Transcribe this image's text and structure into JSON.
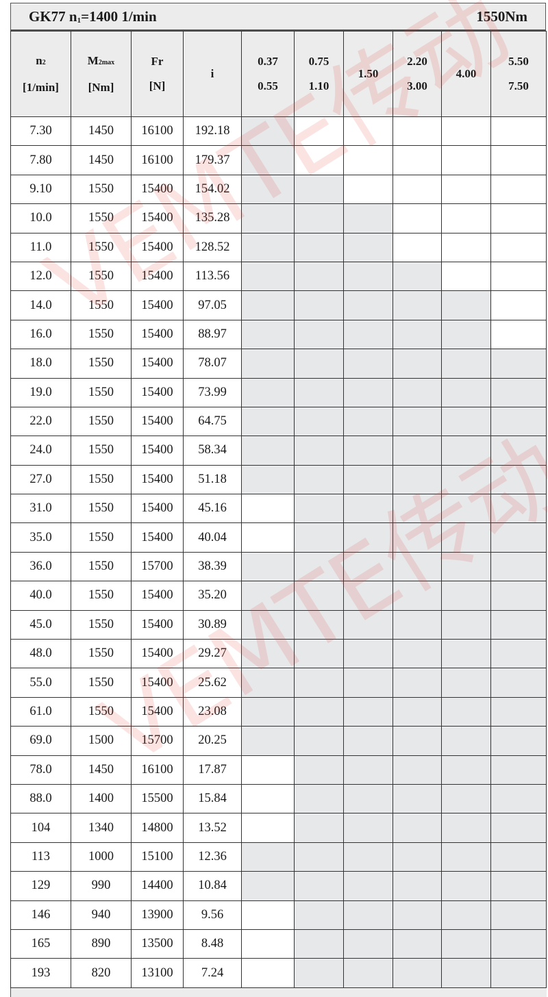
{
  "title": {
    "model": "GK77",
    "n1_prefix": "n",
    "n1_sub": "1",
    "n1_value": "=1400 1/min",
    "torque": "1550Nm"
  },
  "headers": {
    "n2": {
      "main": "n",
      "sub": "2",
      "unit": "[1/min]"
    },
    "m2max": {
      "main": "M",
      "sub": "2max",
      "unit": "[Nm]"
    },
    "fr": {
      "main": "Fr",
      "unit": "[N]"
    },
    "i": {
      "main": "i"
    },
    "power": [
      {
        "line1": "0.37",
        "line2": "0.55"
      },
      {
        "line1": "0.75",
        "line2": "1.10"
      },
      {
        "line1": "1.50",
        "line2": ""
      },
      {
        "line1": "2.20",
        "line2": "3.00"
      },
      {
        "line1": "4.00",
        "line2": ""
      },
      {
        "line1": "5.50",
        "line2": "7.50"
      }
    ]
  },
  "rows": [
    {
      "n2": "7.30",
      "m2max": "1450",
      "fr": "16100",
      "i": "192.18",
      "avail": [
        1,
        0,
        0,
        0,
        0,
        0
      ]
    },
    {
      "n2": "7.80",
      "m2max": "1450",
      "fr": "16100",
      "i": "179.37",
      "avail": [
        1,
        0,
        0,
        0,
        0,
        0
      ]
    },
    {
      "n2": "9.10",
      "m2max": "1550",
      "fr": "15400",
      "i": "154.02",
      "avail": [
        1,
        1,
        0,
        0,
        0,
        0
      ]
    },
    {
      "n2": "10.0",
      "m2max": "1550",
      "fr": "15400",
      "i": "135.28",
      "avail": [
        1,
        1,
        1,
        0,
        0,
        0
      ]
    },
    {
      "n2": "11.0",
      "m2max": "1550",
      "fr": "15400",
      "i": "128.52",
      "avail": [
        1,
        1,
        1,
        0,
        0,
        0
      ]
    },
    {
      "n2": "12.0",
      "m2max": "1550",
      "fr": "15400",
      "i": "113.56",
      "avail": [
        1,
        1,
        1,
        1,
        0,
        0
      ]
    },
    {
      "n2": "14.0",
      "m2max": "1550",
      "fr": "15400",
      "i": "97.05",
      "avail": [
        1,
        1,
        1,
        1,
        1,
        0
      ]
    },
    {
      "n2": "16.0",
      "m2max": "1550",
      "fr": "15400",
      "i": "88.97",
      "avail": [
        1,
        1,
        1,
        1,
        1,
        0
      ]
    },
    {
      "n2": "18.0",
      "m2max": "1550",
      "fr": "15400",
      "i": "78.07",
      "avail": [
        1,
        1,
        1,
        1,
        1,
        1
      ]
    },
    {
      "n2": "19.0",
      "m2max": "1550",
      "fr": "15400",
      "i": "73.99",
      "avail": [
        1,
        1,
        1,
        1,
        1,
        1
      ]
    },
    {
      "n2": "22.0",
      "m2max": "1550",
      "fr": "15400",
      "i": "64.75",
      "avail": [
        1,
        1,
        1,
        1,
        1,
        1
      ]
    },
    {
      "n2": "24.0",
      "m2max": "1550",
      "fr": "15400",
      "i": "58.34",
      "avail": [
        1,
        1,
        1,
        1,
        1,
        1
      ]
    },
    {
      "n2": "27.0",
      "m2max": "1550",
      "fr": "15400",
      "i": "51.18",
      "avail": [
        1,
        1,
        1,
        1,
        1,
        1
      ]
    },
    {
      "n2": "31.0",
      "m2max": "1550",
      "fr": "15400",
      "i": "45.16",
      "avail": [
        0,
        1,
        1,
        1,
        1,
        1
      ]
    },
    {
      "n2": "35.0",
      "m2max": "1550",
      "fr": "15400",
      "i": "40.04",
      "avail": [
        0,
        1,
        1,
        1,
        1,
        1
      ]
    },
    {
      "n2": "36.0",
      "m2max": "1550",
      "fr": "15700",
      "i": "38.39",
      "avail": [
        1,
        1,
        1,
        1,
        1,
        1
      ]
    },
    {
      "n2": "40.0",
      "m2max": "1550",
      "fr": "15400",
      "i": "35.20",
      "avail": [
        1,
        1,
        1,
        1,
        1,
        1
      ]
    },
    {
      "n2": "45.0",
      "m2max": "1550",
      "fr": "15400",
      "i": "30.89",
      "avail": [
        1,
        1,
        1,
        1,
        1,
        1
      ]
    },
    {
      "n2": "48.0",
      "m2max": "1550",
      "fr": "15400",
      "i": "29.27",
      "avail": [
        1,
        1,
        1,
        1,
        1,
        1
      ]
    },
    {
      "n2": "55.0",
      "m2max": "1550",
      "fr": "15400",
      "i": "25.62",
      "avail": [
        1,
        1,
        1,
        1,
        1,
        1
      ]
    },
    {
      "n2": "61.0",
      "m2max": "1550",
      "fr": "15400",
      "i": "23.08",
      "avail": [
        1,
        1,
        1,
        1,
        1,
        1
      ]
    },
    {
      "n2": "69.0",
      "m2max": "1500",
      "fr": "15700",
      "i": "20.25",
      "avail": [
        1,
        1,
        1,
        1,
        1,
        1
      ]
    },
    {
      "n2": "78.0",
      "m2max": "1450",
      "fr": "16100",
      "i": "17.87",
      "avail": [
        0,
        1,
        1,
        1,
        1,
        1
      ]
    },
    {
      "n2": "88.0",
      "m2max": "1400",
      "fr": "15500",
      "i": "15.84",
      "avail": [
        0,
        1,
        1,
        1,
        1,
        1
      ]
    },
    {
      "n2": "104",
      "m2max": "1340",
      "fr": "14800",
      "i": "13.52",
      "avail": [
        0,
        1,
        1,
        1,
        1,
        1
      ]
    },
    {
      "n2": "113",
      "m2max": "1000",
      "fr": "15100",
      "i": "12.36",
      "avail": [
        1,
        1,
        1,
        1,
        1,
        1
      ]
    },
    {
      "n2": "129",
      "m2max": "990",
      "fr": "14400",
      "i": "10.84",
      "avail": [
        1,
        1,
        1,
        1,
        1,
        1
      ]
    },
    {
      "n2": "146",
      "m2max": "940",
      "fr": "13900",
      "i": "9.56",
      "avail": [
        0,
        1,
        1,
        1,
        1,
        1
      ]
    },
    {
      "n2": "165",
      "m2max": "890",
      "fr": "13500",
      "i": "8.48",
      "avail": [
        0,
        1,
        1,
        1,
        1,
        1
      ]
    },
    {
      "n2": "193",
      "m2max": "820",
      "fr": "13100",
      "i": "7.24",
      "avail": [
        0,
        1,
        1,
        1,
        1,
        1
      ]
    }
  ],
  "colors": {
    "available": "#e6e8ea",
    "header_bg": "#ececec",
    "watermark": "#e53935"
  },
  "watermark": "VEMTE传动"
}
